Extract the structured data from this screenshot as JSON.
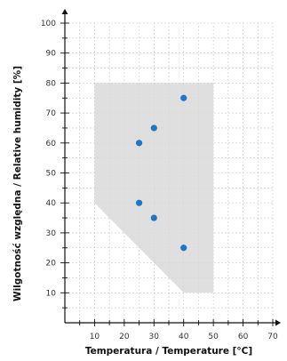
{
  "chart_data": {
    "type": "scatter",
    "xlabel": "Temperatura / Temperature [°C]",
    "ylabel": "Wilgotność względna / Relative humidity [%]",
    "xlim": [
      0,
      70
    ],
    "ylim": [
      0,
      100
    ],
    "x_ticks": [
      10,
      20,
      30,
      40,
      50,
      60,
      70
    ],
    "y_ticks": [
      10,
      20,
      30,
      40,
      50,
      60,
      70,
      80,
      90,
      100
    ],
    "x_tick_labels": [
      "10",
      "20",
      "30",
      "40",
      "50",
      "60",
      "70"
    ],
    "y_tick_labels": [
      "10",
      "20",
      "30",
      "40",
      "50",
      "60",
      "70",
      "80",
      "90",
      "100"
    ],
    "grid": "dashed, at every 5 units",
    "region": {
      "color": "#d9d9d9",
      "points": [
        [
          10,
          80
        ],
        [
          50,
          80
        ],
        [
          50,
          10
        ],
        [
          40,
          10
        ],
        [
          10,
          40
        ]
      ]
    },
    "series": [
      {
        "color": "#1f77c4",
        "points": [
          [
            40,
            75
          ],
          [
            30,
            65
          ],
          [
            25,
            60
          ],
          [
            25,
            40
          ],
          [
            30,
            35
          ],
          [
            40,
            25
          ]
        ]
      }
    ]
  }
}
